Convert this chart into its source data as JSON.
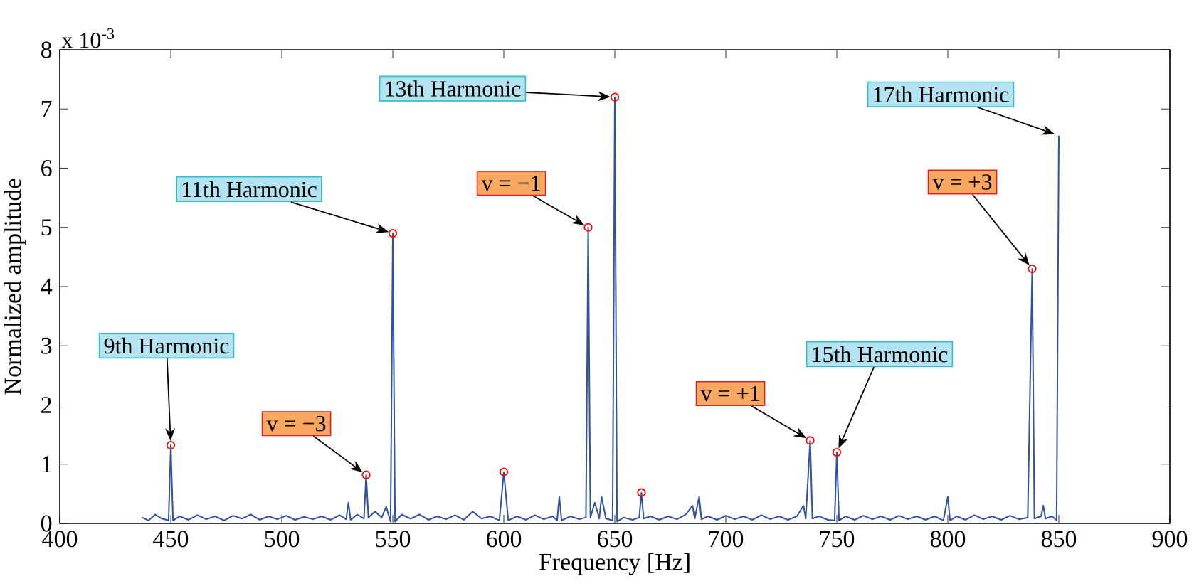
{
  "chart_data": {
    "type": "line",
    "xlabel": "Frequency [Hz]",
    "ylabel": "Normalized amplitude",
    "xlim": [
      400,
      900
    ],
    "ylim": [
      0,
      8
    ],
    "xticks": [
      400,
      450,
      500,
      550,
      600,
      650,
      700,
      750,
      800,
      850,
      900
    ],
    "yticks": [
      0,
      1,
      2,
      3,
      4,
      5,
      6,
      7,
      8
    ],
    "annotations": [
      "x 10$^{-3}$",
      {
        "text": "9th Harmonic",
        "x": 450,
        "y": 1.32
      },
      {
        "text": "v = −3",
        "x": 538,
        "y": 0.82
      },
      {
        "text": "11th Harmonic",
        "x": 550,
        "y": 4.9
      },
      {
        "text": "v = −1",
        "x": 638,
        "y": 5.0
      },
      {
        "text": "13th Harmonic",
        "x": 650,
        "y": 7.2
      },
      {
        "text": "v = +1",
        "x": 738,
        "y": 1.4
      },
      {
        "text": "15th Harmonic",
        "x": 750,
        "y": 1.2
      },
      {
        "text": "v = +3",
        "x": 838,
        "y": 4.3
      },
      {
        "text": "17th Harmonic",
        "x": 850,
        "y": 6.55
      }
    ],
    "series": [
      {
        "color": "#3050a0",
        "x": [
          437,
          440,
          443,
          446,
          449,
          450,
          451,
          454,
          458,
          462,
          466,
          470,
          474,
          478,
          482,
          486,
          490,
          494,
          498,
          502,
          506,
          510,
          514,
          518,
          522,
          526,
          529,
          530,
          531,
          534,
          537,
          538,
          539,
          542,
          545,
          547,
          549,
          550,
          551,
          554,
          558,
          562,
          566,
          570,
          574,
          578,
          582,
          586,
          590,
          594,
          598,
          600,
          602,
          606,
          610,
          614,
          618,
          622,
          624,
          625,
          626,
          630,
          634,
          637,
          638,
          639,
          641,
          643,
          644,
          646,
          649,
          650,
          651,
          654,
          658,
          661,
          662,
          663,
          666,
          670,
          674,
          678,
          682,
          685,
          686,
          688,
          689,
          692,
          696,
          700,
          704,
          708,
          712,
          716,
          720,
          724,
          728,
          732,
          735,
          736,
          738,
          739,
          742,
          746,
          749,
          750,
          751,
          754,
          758,
          762,
          766,
          770,
          774,
          778,
          782,
          786,
          790,
          794,
          798,
          800,
          801,
          804,
          808,
          812,
          816,
          820,
          824,
          828,
          832,
          836,
          838,
          839,
          842,
          843,
          844,
          847,
          849,
          850
        ],
        "values": [
          0.1,
          0.05,
          0.15,
          0.08,
          0.05,
          1.32,
          0.05,
          0.12,
          0.06,
          0.14,
          0.07,
          0.12,
          0.05,
          0.13,
          0.08,
          0.15,
          0.06,
          0.12,
          0.07,
          0.13,
          0.06,
          0.11,
          0.07,
          0.12,
          0.06,
          0.14,
          0.07,
          0.35,
          0.06,
          0.15,
          0.08,
          0.82,
          0.1,
          0.2,
          0.1,
          0.28,
          0.03,
          4.9,
          0.03,
          0.15,
          0.08,
          0.15,
          0.06,
          0.12,
          0.07,
          0.14,
          0.06,
          0.2,
          0.08,
          0.12,
          0.05,
          0.87,
          0.05,
          0.12,
          0.06,
          0.14,
          0.07,
          0.12,
          0.05,
          0.45,
          0.05,
          0.12,
          0.07,
          0.1,
          5.0,
          0.1,
          0.35,
          0.08,
          0.45,
          0.08,
          0.05,
          7.2,
          0.03,
          0.1,
          0.06,
          0.1,
          0.52,
          0.08,
          0.12,
          0.06,
          0.12,
          0.07,
          0.15,
          0.3,
          0.08,
          0.45,
          0.07,
          0.12,
          0.06,
          0.13,
          0.07,
          0.12,
          0.06,
          0.14,
          0.07,
          0.12,
          0.06,
          0.12,
          0.3,
          0.08,
          1.4,
          0.08,
          0.12,
          0.06,
          0.05,
          1.2,
          0.05,
          0.12,
          0.06,
          0.13,
          0.07,
          0.12,
          0.06,
          0.13,
          0.07,
          0.12,
          0.06,
          0.12,
          0.05,
          0.45,
          0.05,
          0.12,
          0.06,
          0.14,
          0.07,
          0.12,
          0.06,
          0.13,
          0.07,
          0.1,
          4.3,
          0.08,
          0.12,
          0.3,
          0.08,
          0.12,
          0.05,
          6.55
        ]
      },
      {
        "type": "scatter",
        "color": "#ff0000",
        "x": [
          450,
          538,
          550,
          600,
          638,
          650,
          662,
          738,
          750,
          838
        ],
        "values": [
          1.32,
          0.82,
          4.9,
          0.87,
          5.0,
          7.2,
          0.52,
          1.4,
          1.2,
          4.3
        ]
      }
    ]
  }
}
